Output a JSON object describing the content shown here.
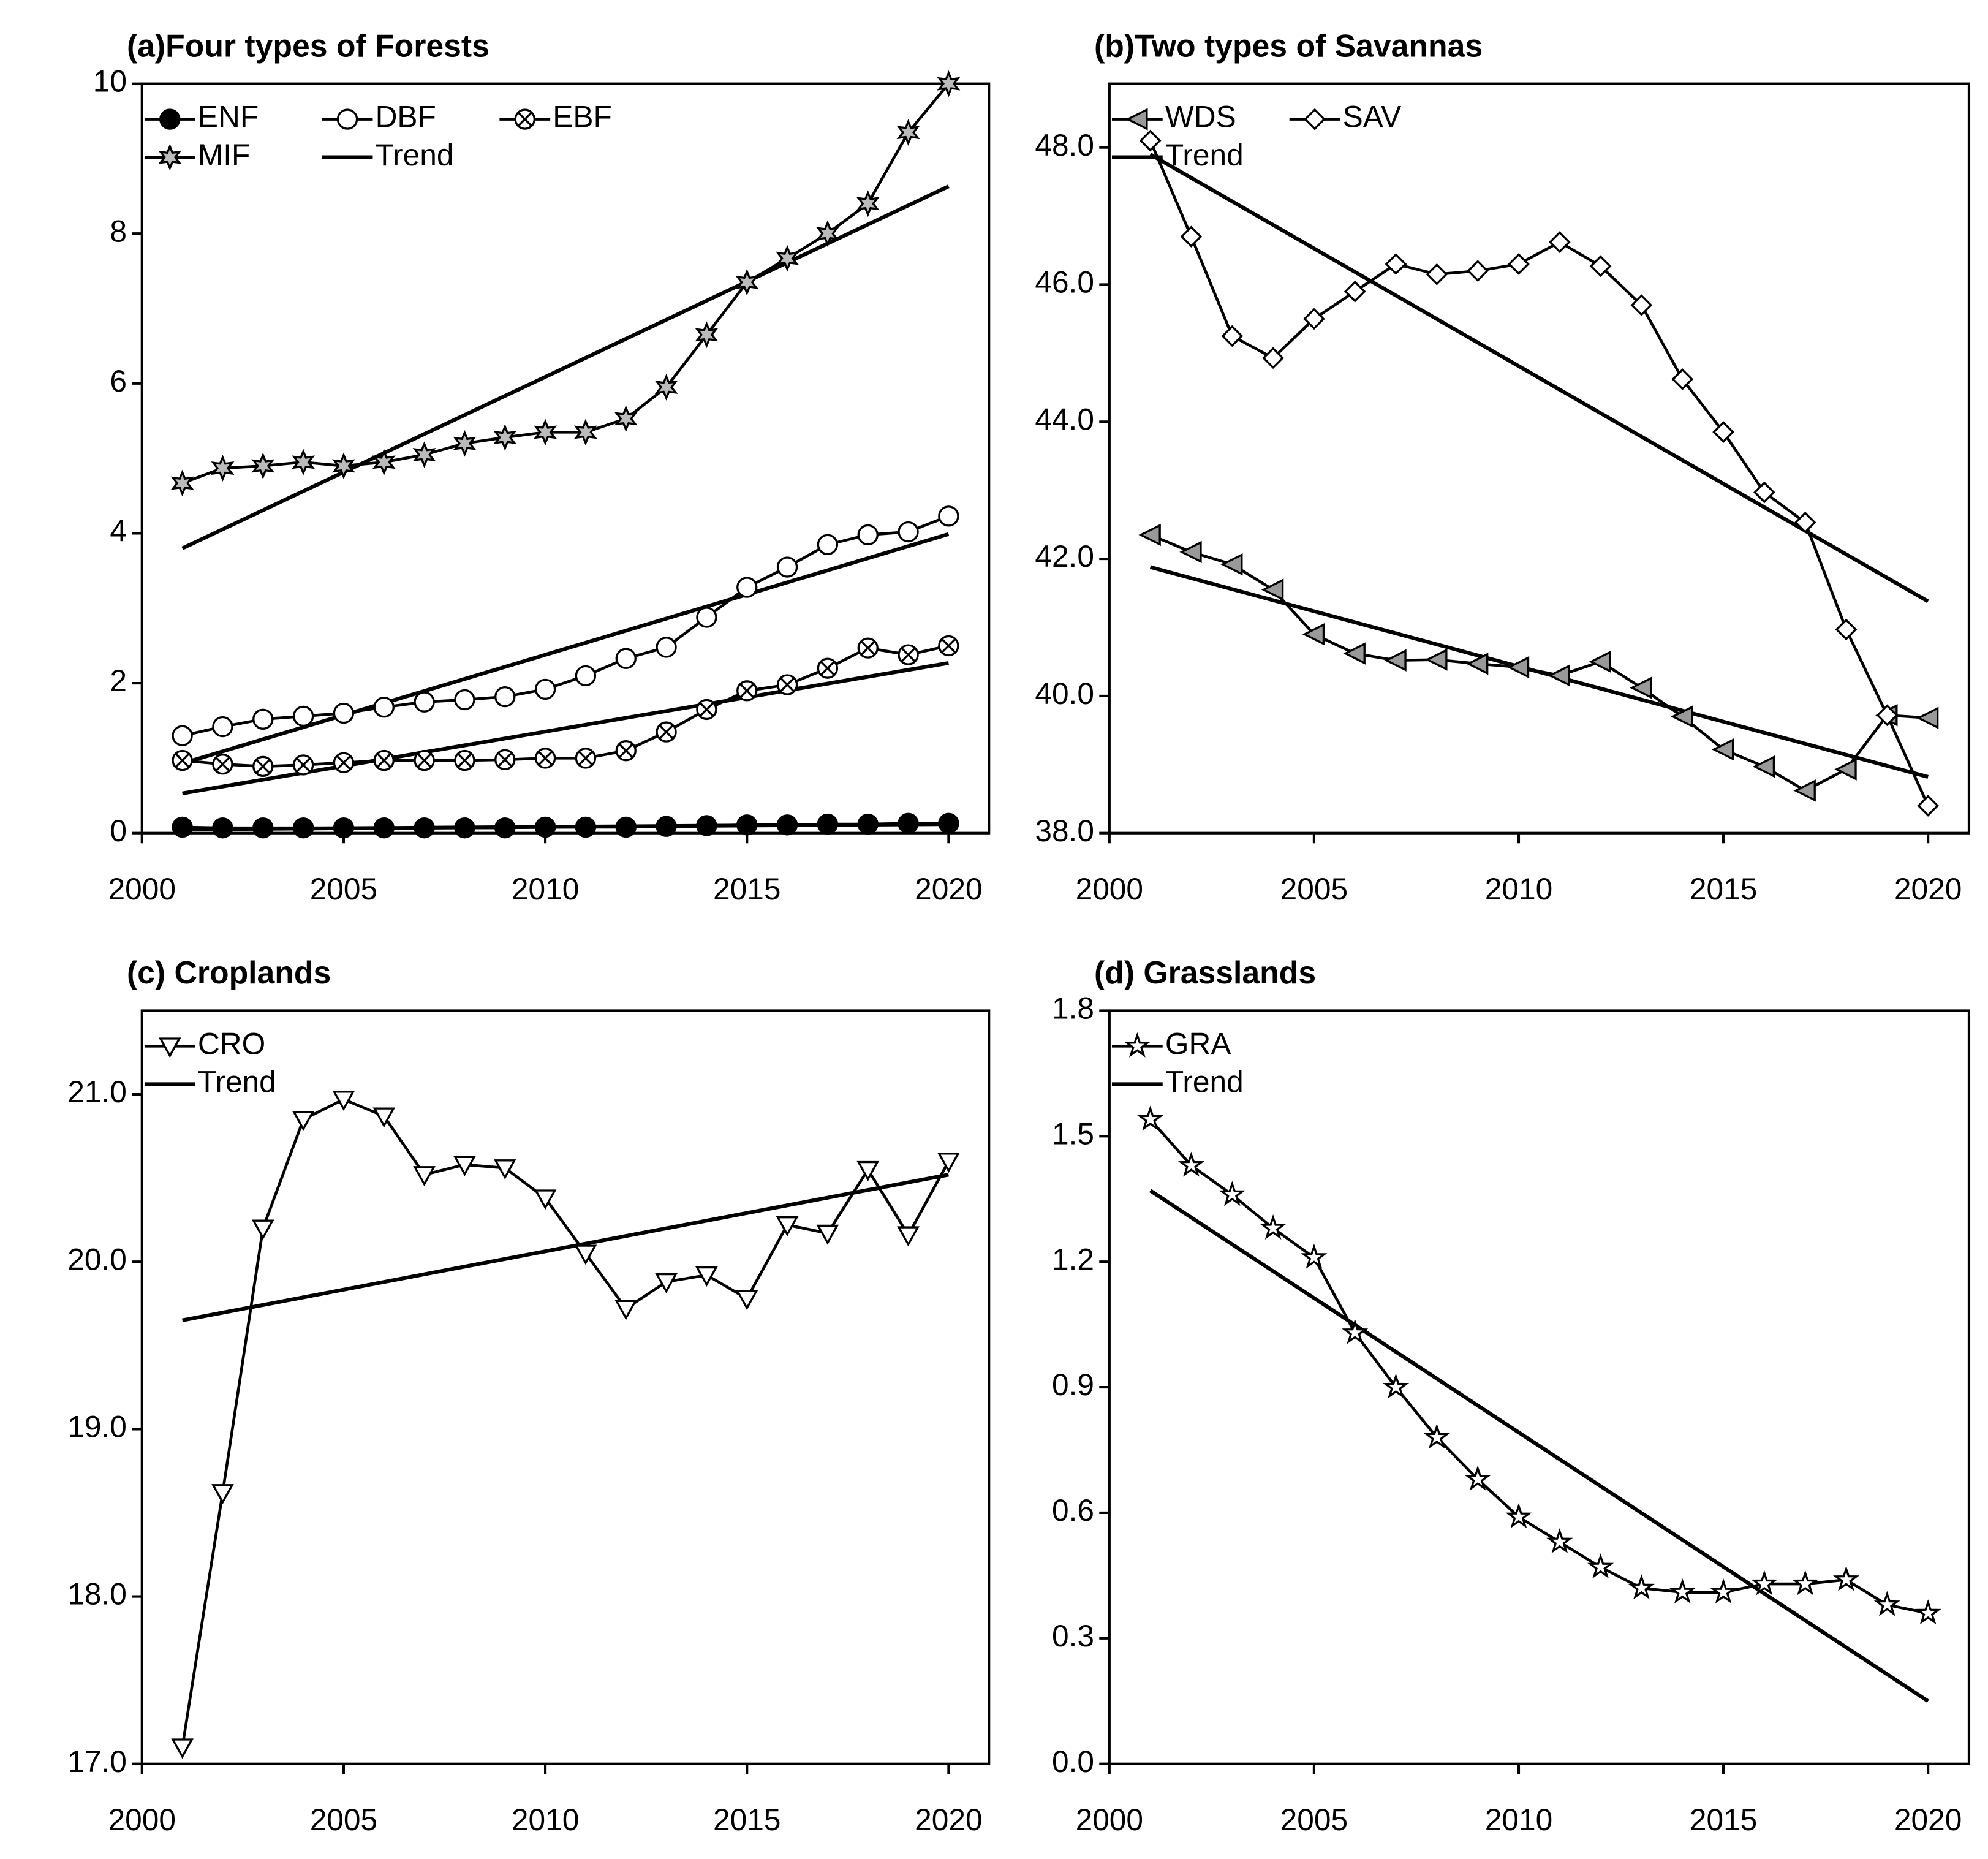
{
  "chart_data": [
    {
      "type": "line",
      "title": "(a)Four types of Forests",
      "x": [
        2001,
        2002,
        2003,
        2004,
        2005,
        2006,
        2007,
        2008,
        2009,
        2010,
        2011,
        2012,
        2013,
        2014,
        2015,
        2016,
        2017,
        2018,
        2019,
        2020
      ],
      "xlim": [
        2000,
        2021
      ],
      "xticks": [
        2000,
        2005,
        2010,
        2015,
        2020
      ],
      "ylim": [
        0,
        10
      ],
      "yticks": [
        0,
        2,
        4,
        6,
        8,
        10
      ],
      "legend_columns": 3,
      "series": [
        {
          "name": "ENF",
          "color": "#000000",
          "marker": "filled-circle",
          "values": [
            0.08,
            0.07,
            0.07,
            0.07,
            0.07,
            0.07,
            0.07,
            0.07,
            0.07,
            0.08,
            0.08,
            0.08,
            0.09,
            0.1,
            0.11,
            0.11,
            0.12,
            0.12,
            0.13,
            0.13
          ]
        },
        {
          "name": "DBF",
          "color": "#000000",
          "marker": "circle",
          "values": [
            1.3,
            1.42,
            1.52,
            1.56,
            1.6,
            1.68,
            1.75,
            1.78,
            1.82,
            1.92,
            2.1,
            2.33,
            2.48,
            2.88,
            3.28,
            3.55,
            3.85,
            3.98,
            4.02,
            4.23
          ]
        },
        {
          "name": "EBF",
          "color": "#000000",
          "marker": "circle-x",
          "values": [
            0.97,
            0.92,
            0.89,
            0.91,
            0.94,
            0.97,
            0.97,
            0.97,
            0.98,
            1.0,
            1.0,
            1.1,
            1.35,
            1.65,
            1.9,
            1.98,
            2.2,
            2.47,
            2.38,
            2.5
          ]
        },
        {
          "name": "MIF",
          "color": "#000000",
          "marker": "star6",
          "values": [
            4.67,
            4.87,
            4.9,
            4.95,
            4.9,
            4.95,
            5.05,
            5.2,
            5.28,
            5.35,
            5.35,
            5.53,
            5.95,
            6.65,
            7.35,
            7.67,
            8.0,
            8.4,
            9.35,
            10.0
          ]
        }
      ],
      "trend": {
        "name": "Trend",
        "color": "#000000",
        "x": [
          2001,
          2020
        ],
        "lines": [
          [
            0.05,
            0.12
          ],
          [
            0.93,
            3.99
          ],
          [
            0.53,
            2.27
          ],
          [
            3.8,
            8.63
          ]
        ]
      }
    },
    {
      "type": "line",
      "title": "(b)Two types of Savannas",
      "x": [
        2001,
        2002,
        2003,
        2004,
        2005,
        2006,
        2007,
        2008,
        2009,
        2010,
        2011,
        2012,
        2013,
        2014,
        2015,
        2016,
        2017,
        2018,
        2019,
        2020
      ],
      "xlim": [
        2000,
        2021
      ],
      "xticks": [
        2000,
        2005,
        2010,
        2015,
        2020
      ],
      "ylim": [
        38,
        48.93
      ],
      "yticks": [
        {
          "value": 38,
          "label": "38.0"
        },
        {
          "value": 40,
          "label": "40.0"
        },
        {
          "value": 42,
          "label": "42.0"
        },
        {
          "value": 44,
          "label": "44.0"
        },
        {
          "value": 46,
          "label": "46.0"
        },
        {
          "value": 48,
          "label": "48.0"
        }
      ],
      "legend_columns": 2,
      "series": [
        {
          "name": "WDS",
          "color": "#000000",
          "marker": "left-triangle",
          "values": [
            42.35,
            42.1,
            41.92,
            41.55,
            40.9,
            40.62,
            40.52,
            40.53,
            40.47,
            40.42,
            40.3,
            40.5,
            40.12,
            39.7,
            39.22,
            38.97,
            38.62,
            38.93,
            39.72,
            39.68
          ]
        },
        {
          "name": "SAV",
          "color": "#000000",
          "marker": "diamond",
          "values": [
            48.1,
            46.7,
            45.25,
            44.93,
            45.5,
            45.9,
            46.3,
            46.15,
            46.2,
            46.3,
            46.62,
            46.27,
            45.7,
            44.62,
            43.85,
            42.97,
            42.53,
            40.97,
            39.72,
            38.4
          ]
        }
      ],
      "trend": {
        "name": "Trend",
        "color": "#000000",
        "x": [
          2001,
          2020
        ],
        "lines": [
          [
            41.88,
            38.82
          ],
          [
            47.9,
            41.38
          ]
        ]
      }
    },
    {
      "type": "line",
      "title": "(c) Croplands",
      "x": [
        2001,
        2002,
        2003,
        2004,
        2005,
        2006,
        2007,
        2008,
        2009,
        2010,
        2011,
        2012,
        2013,
        2014,
        2015,
        2016,
        2017,
        2018,
        2019,
        2020
      ],
      "xlim": [
        2000,
        2021
      ],
      "xticks": [
        2000,
        2005,
        2010,
        2015,
        2020
      ],
      "ylim": [
        17,
        21.5
      ],
      "yticks": [
        {
          "value": 17,
          "label": "17.0"
        },
        {
          "value": 18,
          "label": "18.0"
        },
        {
          "value": 19,
          "label": "19.0"
        },
        {
          "value": 20,
          "label": "20.0"
        },
        {
          "value": 21,
          "label": "21.0"
        }
      ],
      "legend_columns": 1,
      "series": [
        {
          "name": "CRO",
          "color": "#000000",
          "marker": "down-triangle",
          "values": [
            17.1,
            18.62,
            20.2,
            20.85,
            20.97,
            20.87,
            20.52,
            20.58,
            20.56,
            20.38,
            20.05,
            19.72,
            19.88,
            19.92,
            19.78,
            20.22,
            20.17,
            20.55,
            20.16,
            20.6
          ]
        }
      ],
      "trend": {
        "name": "Trend",
        "color": "#000000",
        "x": [
          2001,
          2020
        ],
        "lines": [
          [
            19.65,
            20.52
          ]
        ]
      }
    },
    {
      "type": "line",
      "title": "(d) Grasslands",
      "x": [
        2001,
        2002,
        2003,
        2004,
        2005,
        2006,
        2007,
        2008,
        2009,
        2010,
        2011,
        2012,
        2013,
        2014,
        2015,
        2016,
        2017,
        2018,
        2019,
        2020
      ],
      "xlim": [
        2000,
        2021
      ],
      "xticks": [
        2000,
        2005,
        2010,
        2015,
        2020
      ],
      "ylim": [
        0,
        1.8
      ],
      "yticks": [
        {
          "value": 0,
          "label": "0.0"
        },
        0.3,
        0.6,
        0.9,
        1.2,
        1.5,
        1.8
      ],
      "legend_columns": 1,
      "series": [
        {
          "name": "GRA",
          "color": "#000000",
          "marker": "star5",
          "values": [
            1.54,
            1.43,
            1.36,
            1.28,
            1.21,
            1.03,
            0.9,
            0.78,
            0.68,
            0.59,
            0.53,
            0.47,
            0.42,
            0.41,
            0.41,
            0.43,
            0.43,
            0.44,
            0.38,
            0.36
          ]
        }
      ],
      "trend": {
        "name": "Trend",
        "color": "#000000",
        "x": [
          2001,
          2020
        ],
        "lines": [
          [
            1.37,
            0.15
          ]
        ]
      }
    }
  ]
}
